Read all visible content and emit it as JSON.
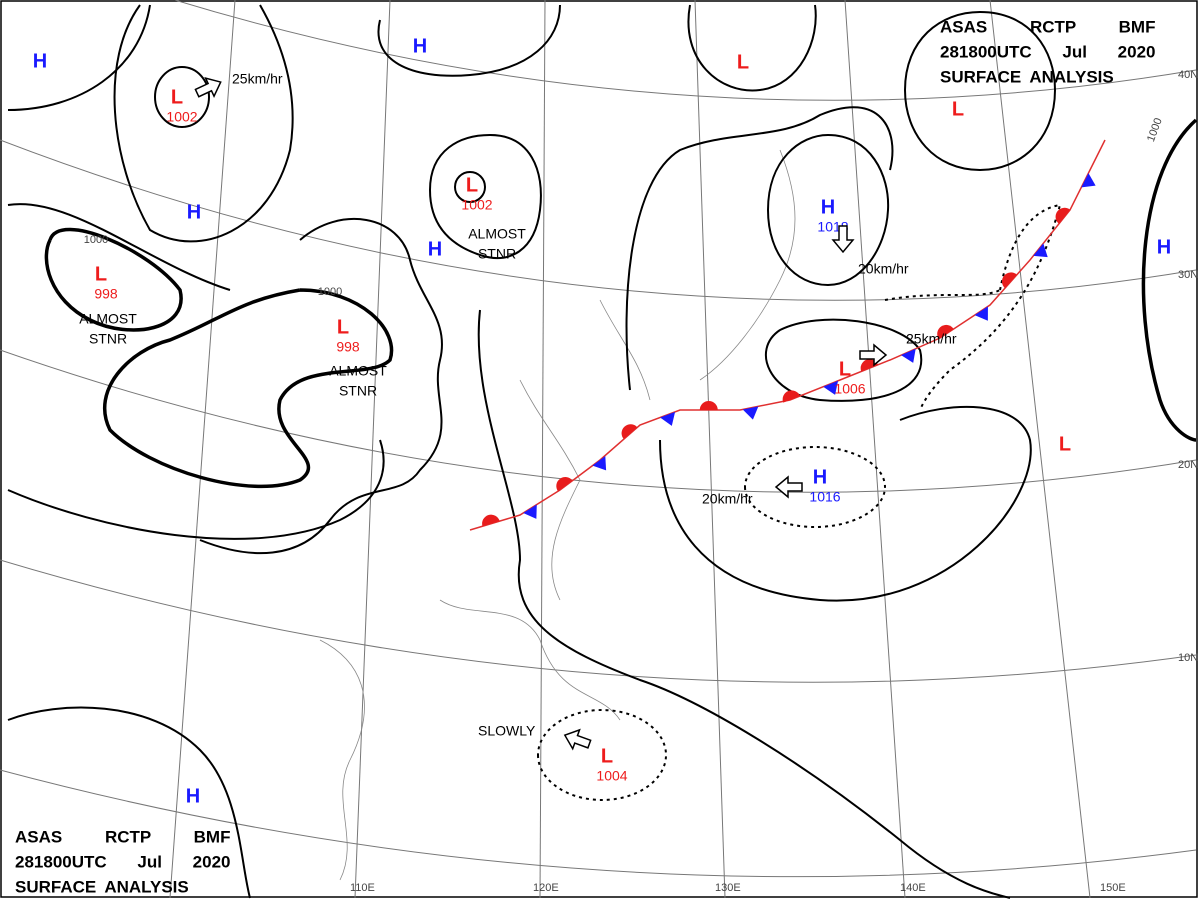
{
  "header": {
    "lines": [
      "ASAS RCTP BMF",
      "281800UTC Jul 2020",
      "SURFACE ANALYSIS"
    ]
  },
  "systems": [
    {
      "label": "H"
    },
    {
      "label": "L",
      "pressure": 1002
    },
    {
      "label": "H"
    },
    {
      "label": "L",
      "pressure": 1002
    },
    {
      "label": "H"
    },
    {
      "label": "H"
    },
    {
      "label": "L",
      "pressure": 998
    },
    {
      "label": "L",
      "pressure": 998
    },
    {
      "label": "L"
    },
    {
      "label": "L"
    },
    {
      "label": "H",
      "pressure": 1018
    },
    {
      "label": "H"
    },
    {
      "label": "L",
      "pressure": 1006
    },
    {
      "label": "L"
    },
    {
      "label": "H",
      "pressure": 1016
    },
    {
      "label": "L",
      "pressure": 1004
    },
    {
      "label": "H"
    }
  ],
  "motions": [
    "25km/hr",
    "20km/hr",
    "25km/hr",
    "20km/hr",
    "SLOWLY"
  ],
  "notes": [
    [
      "ALMOST",
      "STNR"
    ],
    [
      "ALMOST",
      "STNR"
    ],
    [
      "ALMOST",
      "STNR"
    ]
  ],
  "isobar_labels": [
    "1000",
    "1000",
    "1000"
  ],
  "latitudes": [
    "40N",
    "30N",
    "20N",
    "10N"
  ],
  "longitudes": [
    "110E",
    "120E",
    "130E",
    "140E",
    "150E"
  ]
}
